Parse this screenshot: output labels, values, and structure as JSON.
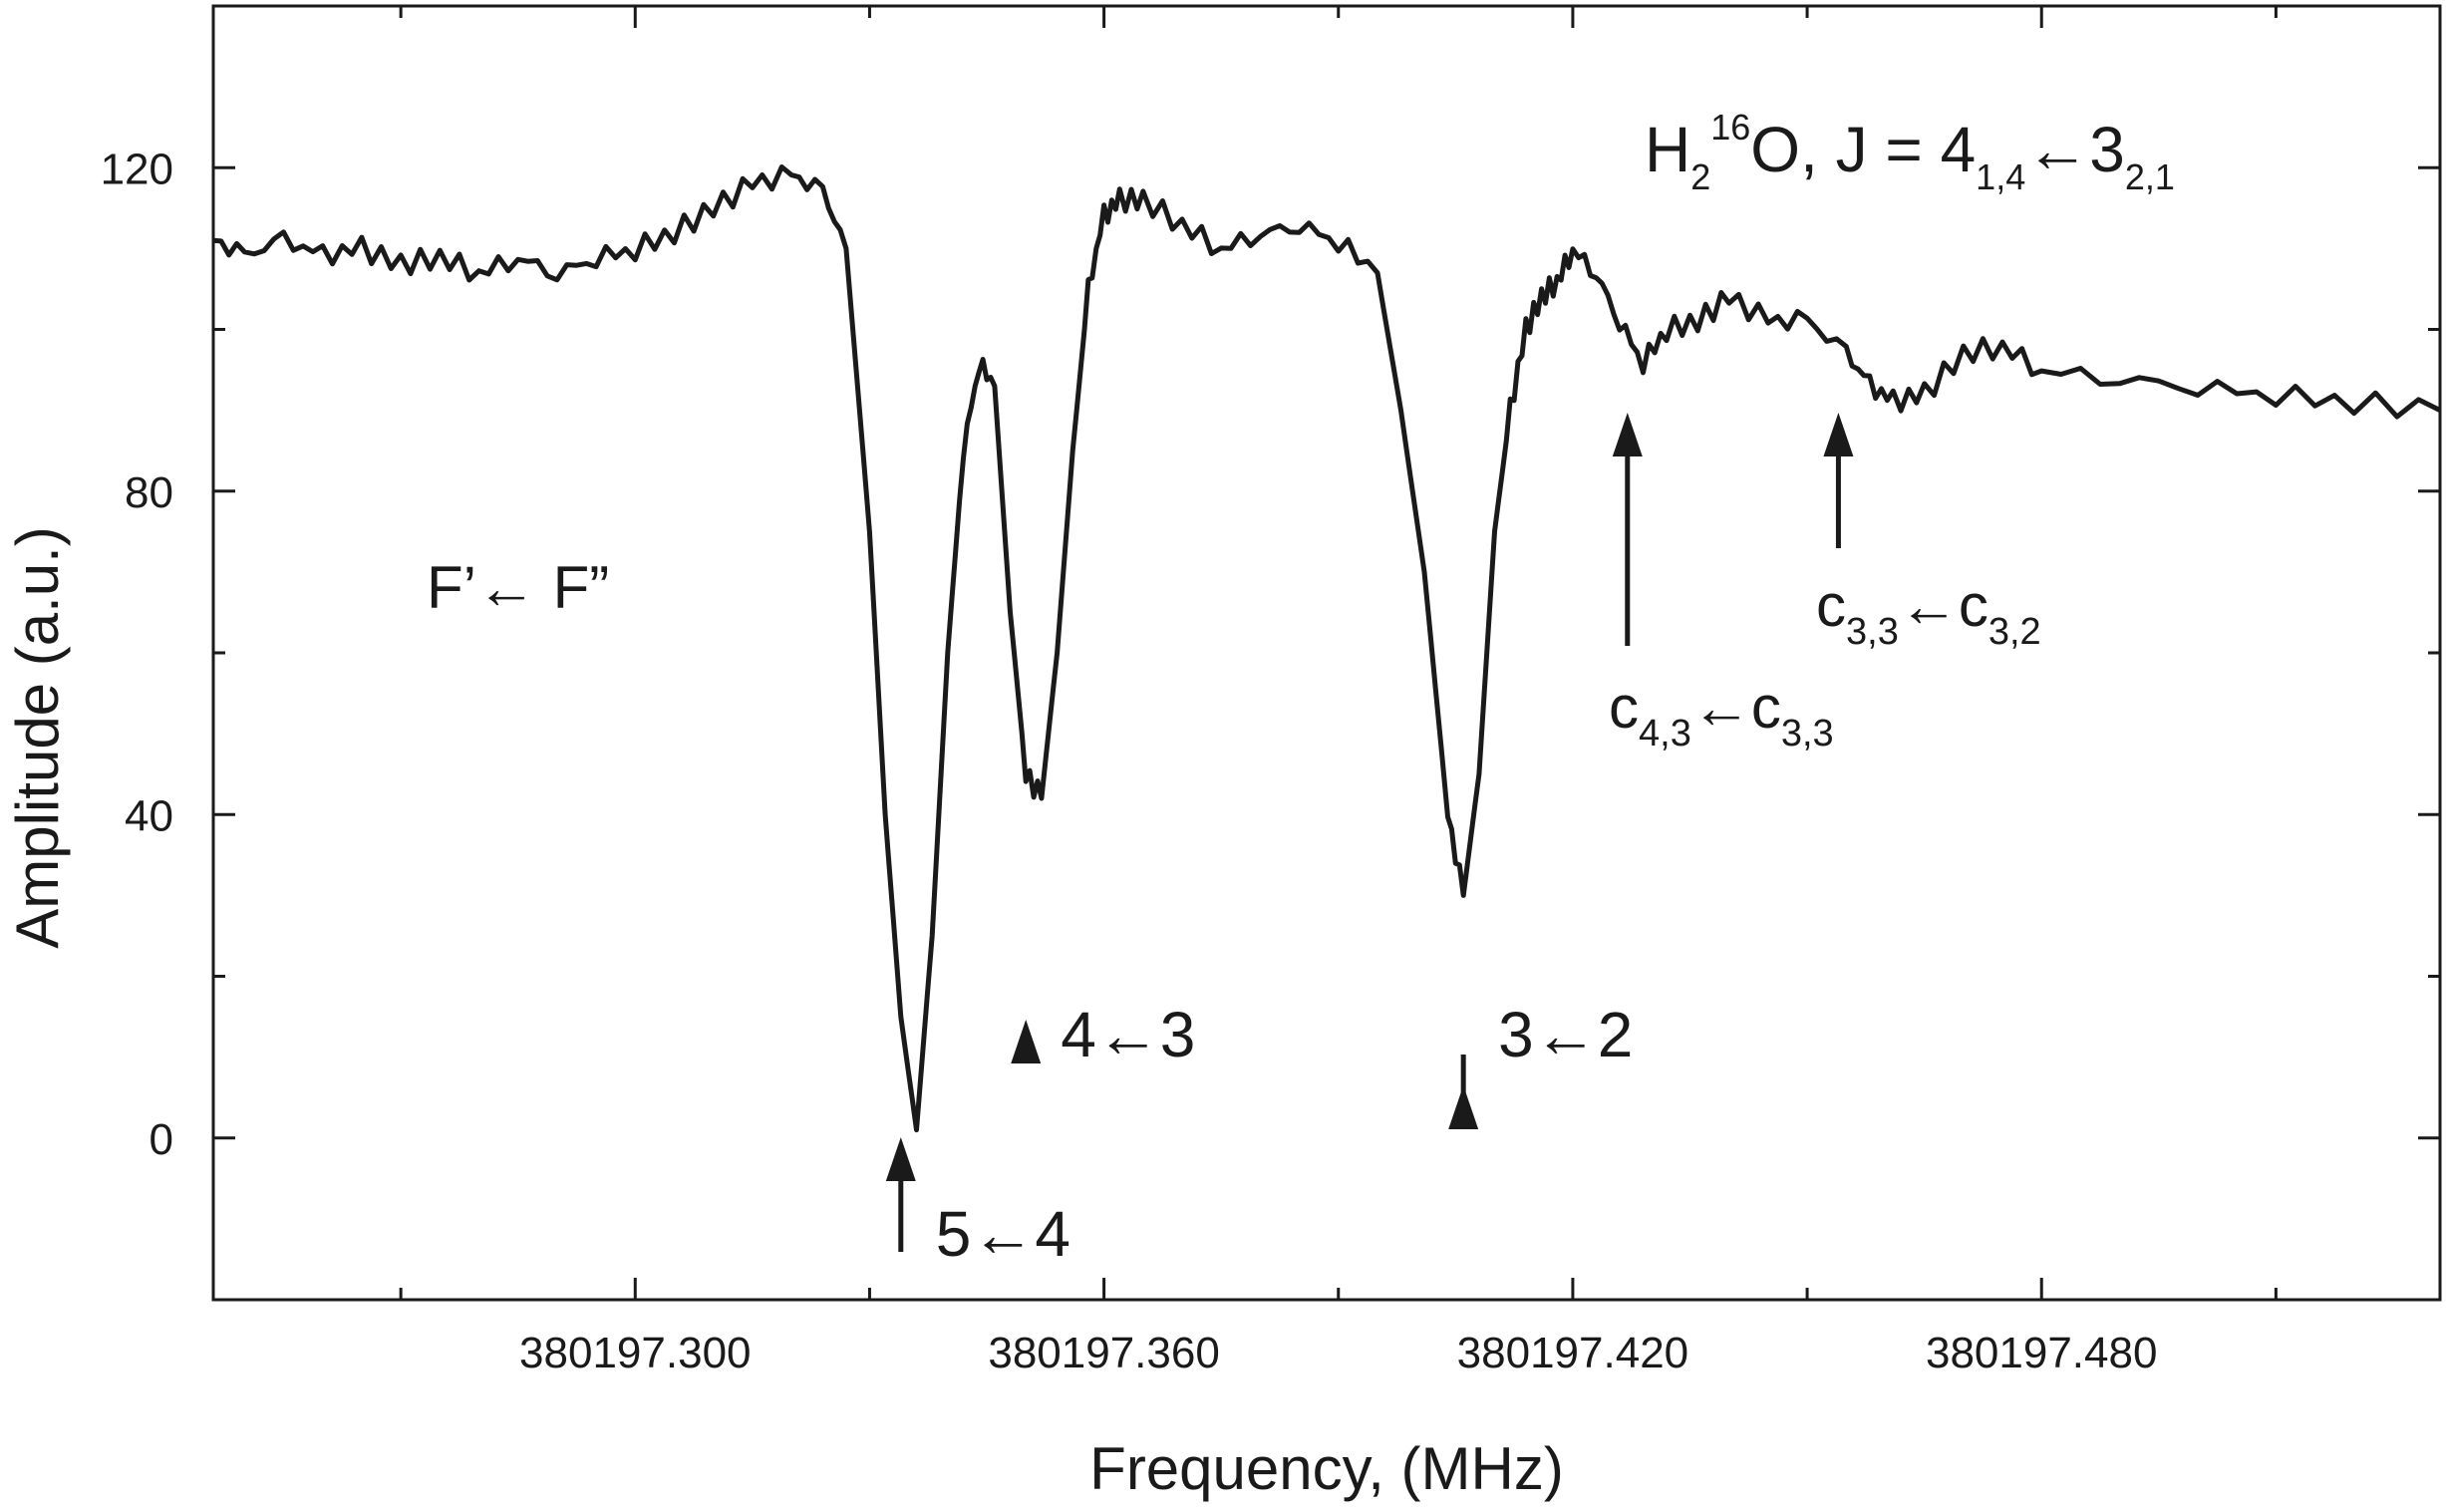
{
  "chart_data": {
    "type": "line",
    "title": "",
    "xlabel": "Frequency,  (MHz)",
    "ylabel": "Amplitude (a.u.)",
    "xlim": [
      380197.246,
      380197.531
    ],
    "ylim": [
      -20,
      140
    ],
    "x_ticks": [
      {
        "value": 380197.3,
        "label": "380197.300"
      },
      {
        "value": 380197.36,
        "label": "380197.360"
      },
      {
        "value": 380197.42,
        "label": "380197.420"
      },
      {
        "value": 380197.48,
        "label": "380197.480"
      }
    ],
    "x_minor_ticks": [
      380197.27,
      380197.33,
      380197.39,
      380197.45,
      380197.51
    ],
    "y_ticks": [
      {
        "value": 0,
        "label": "0"
      },
      {
        "value": 40,
        "label": "40"
      },
      {
        "value": 80,
        "label": "80"
      },
      {
        "value": 120,
        "label": "120"
      }
    ],
    "y_minor_ticks": [
      -20,
      20,
      60,
      100
    ],
    "grid": false,
    "series": [
      {
        "x": [
          380197.246,
          380197.25,
          380197.255,
          380197.26,
          380197.265,
          380197.27,
          380197.275,
          380197.28,
          380197.285,
          380197.29,
          380197.295,
          380197.3,
          380197.305,
          380197.31,
          380197.315,
          380197.32,
          380197.324,
          380197.327,
          380197.33,
          380197.332,
          380197.334,
          380197.336,
          380197.338,
          380197.34,
          380197.342,
          380197.344,
          380197.346,
          380197.348,
          380197.35,
          380197.352,
          380197.354,
          380197.356,
          380197.358,
          380197.36,
          380197.362,
          380197.365,
          380197.37,
          380197.375,
          380197.38,
          380197.385,
          380197.39,
          380197.395,
          380197.398,
          380197.401,
          380197.404,
          380197.406,
          380197.408,
          380197.41,
          380197.412,
          380197.414,
          380197.416,
          380197.418,
          380197.42,
          380197.423,
          380197.426,
          380197.429,
          380197.432,
          380197.436,
          380197.44,
          380197.445,
          380197.45,
          380197.455,
          380197.458,
          380197.461,
          380197.465,
          380197.47,
          380197.475,
          380197.48,
          380197.49,
          380197.5,
          380197.51,
          380197.52,
          380197.531
        ],
        "y": [
          111,
          109,
          111,
          109,
          110,
          108,
          109,
          107,
          109,
          107,
          109,
          110,
          112,
          115,
          118,
          119,
          117,
          110,
          75,
          40,
          15,
          1,
          25,
          60,
          85,
          96,
          93,
          65,
          45,
          42,
          60,
          85,
          105,
          114,
          116,
          116,
          113,
          110,
          112,
          113,
          111,
          107,
          90,
          70,
          40,
          30,
          45,
          75,
          90,
          100,
          104,
          106,
          110,
          107,
          101,
          96,
          100,
          101,
          104,
          101,
          101,
          97,
          93,
          91,
          92,
          97,
          98,
          95,
          94,
          93,
          92,
          91,
          90
        ]
      }
    ],
    "annotations": {
      "species": {
        "main": "H",
        "sub1": "2",
        "sup": "16",
        "rest": "O,  J = 4",
        "sub2": "1,4",
        "arrow": "←3",
        "sub3": "2,1"
      },
      "legend_note": "F’← F”",
      "peaks": [
        {
          "label": "5←4",
          "x": 380197.334
        },
        {
          "label": "4←3",
          "x": 380197.35
        },
        {
          "label": "3←2",
          "x": 380197.406
        }
      ],
      "c1": {
        "a": "c",
        "a_sub": "4,3",
        "arrow": "←c",
        "b_sub": "3,3",
        "x": 380197.427
      },
      "c2": {
        "a": "c",
        "a_sub": "3,3",
        "arrow": "←c",
        "b_sub": "3,2",
        "x": 380197.454
      }
    }
  }
}
